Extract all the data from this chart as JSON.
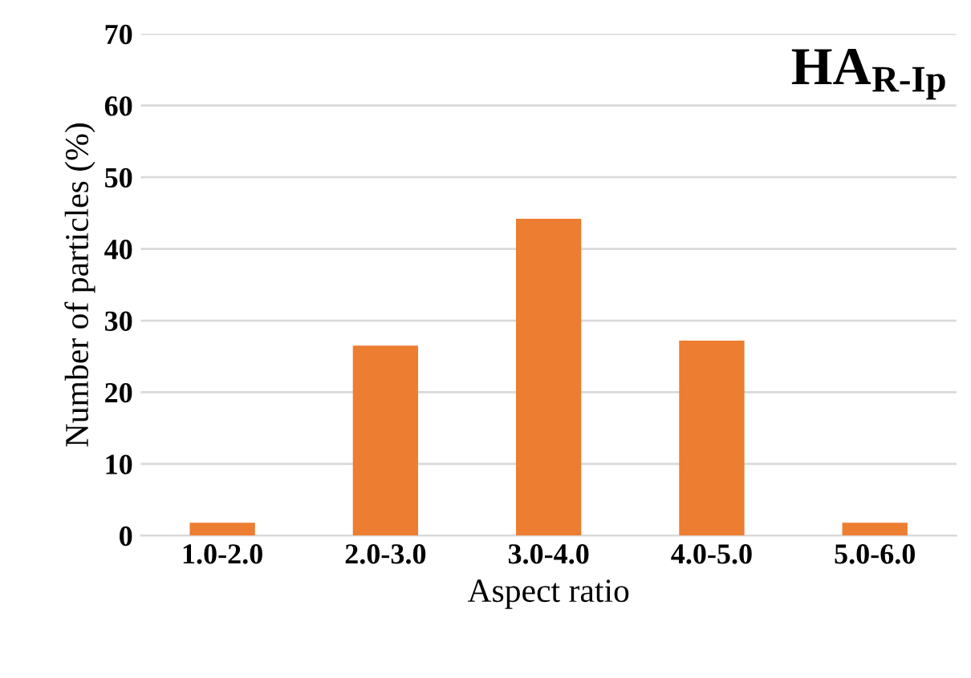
{
  "chart_data": {
    "type": "bar",
    "title": "HA$_{R-Ip}$",
    "xlabel": "Aspect ratio",
    "ylabel": "Number of particles (%)",
    "categories": [
      "1.0-2.0",
      "2.0-3.0",
      "3.0-4.0",
      "4.0-5.0",
      "5.0-6.0"
    ],
    "values": [
      1.8,
      26.5,
      44.2,
      27.2,
      1.8
    ],
    "color": "#ed7d31",
    "ylim": [
      0,
      70
    ],
    "yticks": [
      0,
      10,
      20,
      30,
      40,
      50,
      60,
      70
    ],
    "grid": "y"
  }
}
